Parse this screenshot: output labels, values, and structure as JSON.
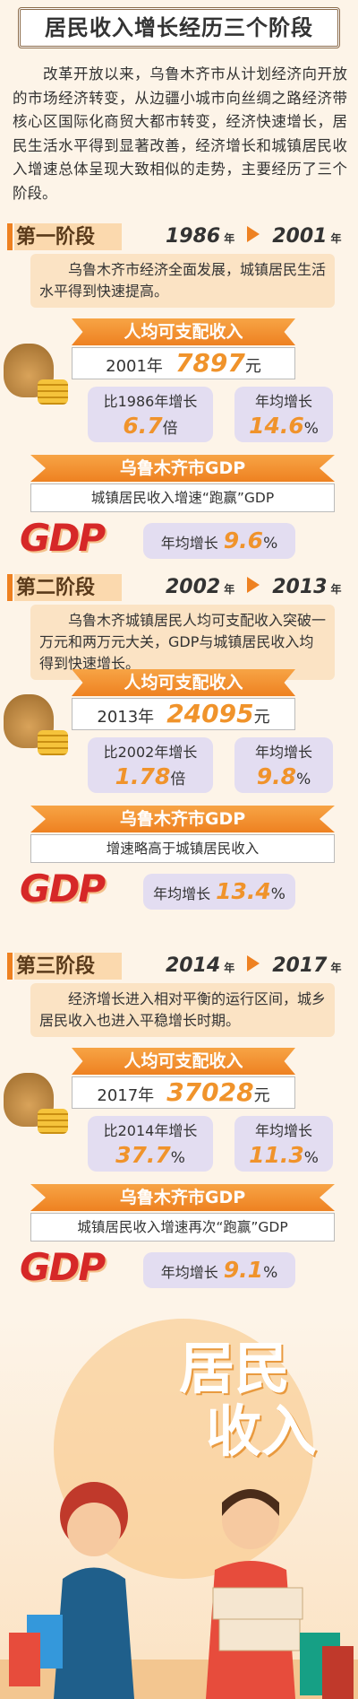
{
  "header": {
    "title": "居民收入增长经历三个阶段"
  },
  "intro": "改革开放以来，乌鲁木齐市从计划经济向开放的市场经济转变，从边疆小城市向丝绸之路经济带核心区国际化商贸大都市转变，经济快速增长，居民生活水平得到显著改善，经济增长和城镇居民收入增速总体呈现大致相似的走势，主要经历了三个阶段。",
  "stages": [
    {
      "label": "第一阶段",
      "start_year": "1986",
      "start_unit": "年",
      "end_year": "2001",
      "end_unit": "年",
      "description": "乌鲁木齐市经济全面发展，城镇居民生活水平得到快速提高。",
      "income": {
        "title": "人均可支配收入",
        "year": "2001年",
        "value": "7897",
        "value_unit": "元",
        "growth_label": "比1986年增长",
        "growth_value": "6.7",
        "growth_unit": "倍",
        "annual_label": "年均增长",
        "annual_value": "14.6",
        "annual_unit": "%"
      },
      "gdp": {
        "title": "乌鲁木齐市GDP",
        "note": "城镇居民收入增速“跑赢”GDP",
        "logo": "GDP",
        "annual_label": "年均增长",
        "annual_value": "9.6",
        "annual_unit": "%"
      }
    },
    {
      "label": "第二阶段",
      "start_year": "2002",
      "start_unit": "年",
      "end_year": "2013",
      "end_unit": "年",
      "description": "乌鲁木齐城镇居民人均可支配收入突破一万元和两万元大关，GDP与城镇居民收入均得到快速增长。",
      "income": {
        "title": "人均可支配收入",
        "year": "2013年",
        "value": "24095",
        "value_unit": "元",
        "growth_label": "比2002年增长",
        "growth_value": "1.78",
        "growth_unit": "倍",
        "annual_label": "年均增长",
        "annual_value": "9.8",
        "annual_unit": "%"
      },
      "gdp": {
        "title": "乌鲁木齐市GDP",
        "note": "增速略高于城镇居民收入",
        "logo": "GDP",
        "annual_label": "年均增长",
        "annual_value": "13.4",
        "annual_unit": "%"
      }
    },
    {
      "label": "第三阶段",
      "start_year": "2014",
      "start_unit": "年",
      "end_year": "2017",
      "end_unit": "年",
      "description": "经济增长进入相对平衡的运行区间，城乡居民收入也进入平稳增长时期。",
      "income": {
        "title": "人均可支配收入",
        "year": "2017年",
        "value": "37028",
        "value_unit": "元",
        "growth_label": "比2014年增长",
        "growth_value": "37.7",
        "growth_unit": "%",
        "annual_label": "年均增长",
        "annual_value": "11.3",
        "annual_unit": "%"
      },
      "gdp": {
        "title": "乌鲁木齐市GDP",
        "note": "城镇居民收入增速再次“跑赢”GDP",
        "logo": "GDP",
        "annual_label": "年均增长",
        "annual_value": "9.1",
        "annual_unit": "%"
      }
    }
  ],
  "footer": {
    "line1": "居民",
    "line2": "收入"
  }
}
